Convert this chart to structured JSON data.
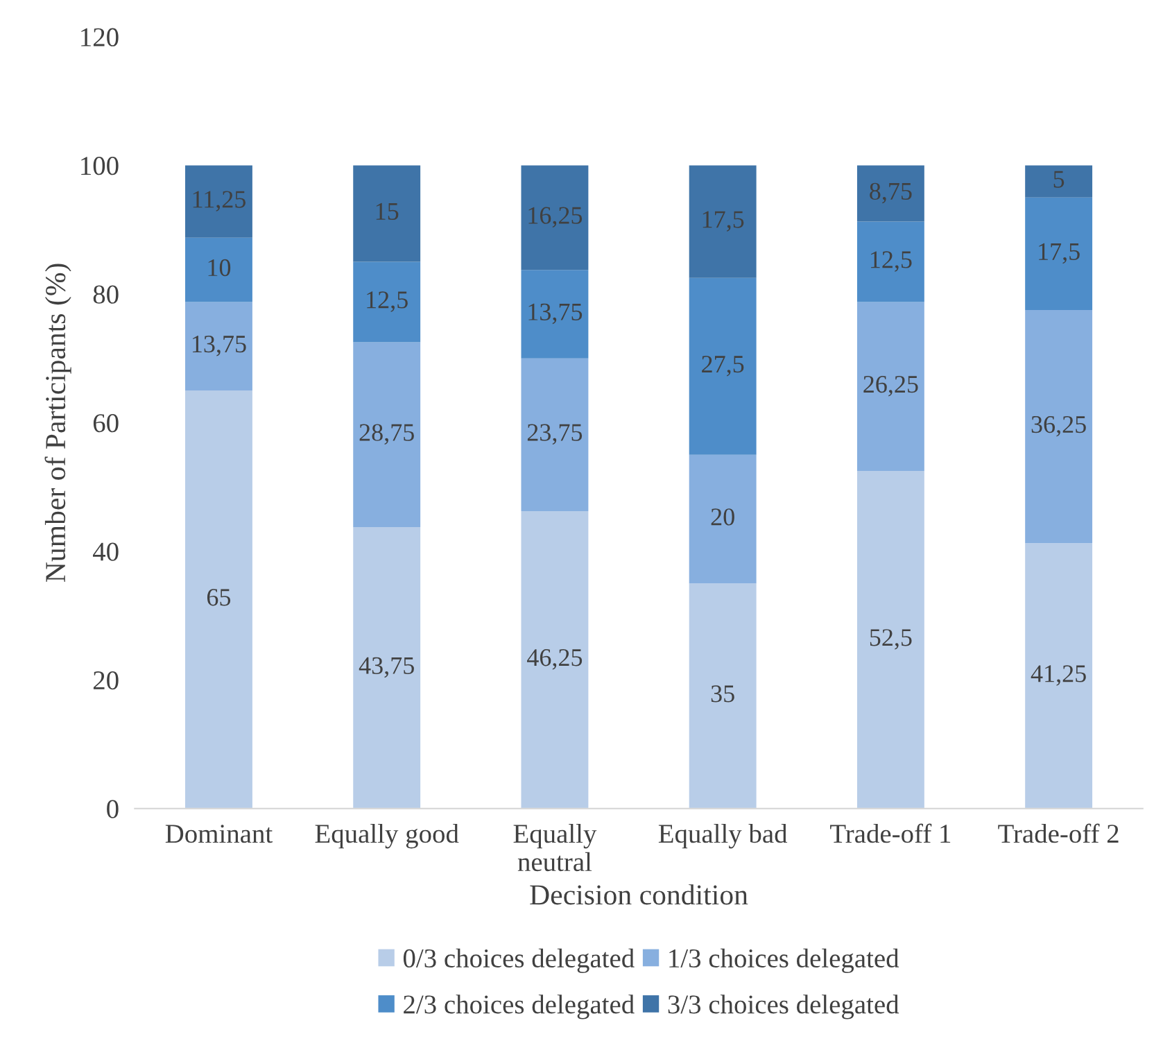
{
  "chart_data": {
    "type": "bar",
    "stacked": true,
    "xlabel": "Decision condition",
    "ylabel": "Number of Participants (%)",
    "categories": [
      "Dominant",
      "Equally good",
      "Equally\nneutral",
      "Equally bad",
      "Trade-off 1",
      "Trade-off 2"
    ],
    "ylim": [
      0,
      120
    ],
    "yticks": [
      0,
      20,
      40,
      60,
      80,
      100,
      120
    ],
    "grid": false,
    "legend": "bottom",
    "series": [
      {
        "name": "0/3 choices delegated",
        "color": "#b8cde8",
        "values": [
          65,
          43.75,
          46.25,
          35,
          52.5,
          41.25
        ],
        "value_labels": [
          "65",
          "43,75",
          "46,25",
          "35",
          "52,5",
          "41,25"
        ]
      },
      {
        "name": "1/3 choices delegated",
        "color": "#87afdf",
        "values": [
          13.75,
          28.75,
          23.75,
          20,
          26.25,
          36.25
        ],
        "value_labels": [
          "13,75",
          "28,75",
          "23,75",
          "20",
          "26,25",
          "36,25"
        ]
      },
      {
        "name": "2/3 choices delegated",
        "color": "#4e8dc9",
        "values": [
          10,
          12.5,
          13.75,
          27.5,
          12.5,
          17.5
        ],
        "value_labels": [
          "10",
          "12,5",
          "13,75",
          "27,5",
          "12,5",
          "17,5"
        ]
      },
      {
        "name": "3/3 choices delegated",
        "color": "#3f74a8",
        "values": [
          11.25,
          15,
          16.25,
          17.5,
          8.75,
          5
        ],
        "value_labels": [
          "11,25",
          "15",
          "16,25",
          "17,5",
          "8,75",
          "5"
        ]
      }
    ]
  }
}
